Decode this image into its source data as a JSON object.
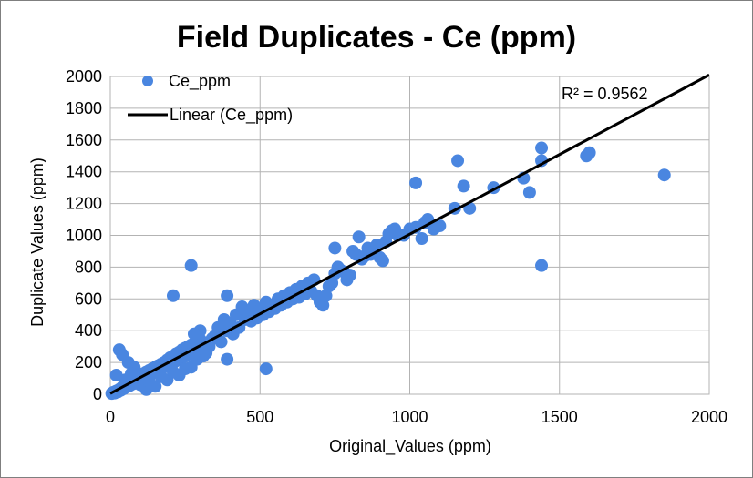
{
  "chart_data": {
    "type": "scatter",
    "title": "Field Duplicates  - Ce (ppm)",
    "xlabel": "Original_Values (ppm)",
    "ylabel": "Duplicate Values (ppm)",
    "xlim": [
      0,
      2000
    ],
    "ylim": [
      0,
      2000
    ],
    "xticks": [
      "0",
      "500",
      "1000",
      "1500",
      "2000"
    ],
    "yticks": [
      "0",
      "200",
      "400",
      "600",
      "800",
      "1000",
      "1200",
      "1400",
      "1600",
      "1800",
      "2000"
    ],
    "grid": true,
    "legend_position": "top-left",
    "annotation": "R² = 0.9562",
    "series": [
      {
        "name": "Ce_ppm",
        "marker": "circle",
        "color": "#4a86e0",
        "points": [
          [
            5,
            5
          ],
          [
            10,
            12
          ],
          [
            15,
            8
          ],
          [
            20,
            20
          ],
          [
            25,
            15
          ],
          [
            30,
            30
          ],
          [
            35,
            25
          ],
          [
            40,
            45
          ],
          [
            45,
            35
          ],
          [
            50,
            60
          ],
          [
            55,
            50
          ],
          [
            60,
            70
          ],
          [
            65,
            55
          ],
          [
            70,
            80
          ],
          [
            75,
            65
          ],
          [
            80,
            95
          ],
          [
            85,
            75
          ],
          [
            90,
            100
          ],
          [
            95,
            85
          ],
          [
            100,
            110
          ],
          [
            105,
            95
          ],
          [
            110,
            130
          ],
          [
            115,
            105
          ],
          [
            120,
            140
          ],
          [
            125,
            115
          ],
          [
            130,
            150
          ],
          [
            135,
            125
          ],
          [
            140,
            160
          ],
          [
            145,
            135
          ],
          [
            150,
            170
          ],
          [
            155,
            145
          ],
          [
            160,
            180
          ],
          [
            165,
            155
          ],
          [
            170,
            190
          ],
          [
            175,
            165
          ],
          [
            180,
            200
          ],
          [
            185,
            175
          ],
          [
            190,
            215
          ],
          [
            195,
            185
          ],
          [
            200,
            230
          ],
          [
            205,
            195
          ],
          [
            210,
            240
          ],
          [
            215,
            205
          ],
          [
            220,
            255
          ],
          [
            225,
            215
          ],
          [
            230,
            265
          ],
          [
            235,
            225
          ],
          [
            240,
            280
          ],
          [
            245,
            235
          ],
          [
            250,
            290
          ],
          [
            255,
            245
          ],
          [
            260,
            300
          ],
          [
            265,
            255
          ],
          [
            270,
            310
          ],
          [
            275,
            265
          ],
          [
            280,
            320
          ],
          [
            285,
            275
          ],
          [
            290,
            330
          ],
          [
            295,
            285
          ],
          [
            300,
            345
          ],
          [
            30,
            280
          ],
          [
            40,
            250
          ],
          [
            60,
            200
          ],
          [
            80,
            170
          ],
          [
            20,
            120
          ],
          [
            50,
            90
          ],
          [
            70,
            130
          ],
          [
            100,
            60
          ],
          [
            120,
            30
          ],
          [
            130,
            80
          ],
          [
            150,
            50
          ],
          [
            170,
            110
          ],
          [
            190,
            90
          ],
          [
            210,
            140
          ],
          [
            230,
            120
          ],
          [
            250,
            160
          ],
          [
            270,
            170
          ],
          [
            290,
            220
          ],
          [
            310,
            240
          ],
          [
            320,
            260
          ],
          [
            300,
            400
          ],
          [
            280,
            380
          ],
          [
            330,
            300
          ],
          [
            340,
            350
          ],
          [
            350,
            370
          ],
          [
            360,
            420
          ],
          [
            370,
            330
          ],
          [
            380,
            470
          ],
          [
            390,
            400
          ],
          [
            400,
            450
          ],
          [
            410,
            380
          ],
          [
            420,
            500
          ],
          [
            430,
            420
          ],
          [
            440,
            550
          ],
          [
            450,
            470
          ],
          [
            460,
            520
          ],
          [
            470,
            460
          ],
          [
            480,
            560
          ],
          [
            490,
            480
          ],
          [
            500,
            530
          ],
          [
            510,
            500
          ],
          [
            520,
            580
          ],
          [
            530,
            520
          ],
          [
            540,
            560
          ],
          [
            550,
            540
          ],
          [
            560,
            600
          ],
          [
            570,
            560
          ],
          [
            580,
            620
          ],
          [
            590,
            580
          ],
          [
            600,
            640
          ],
          [
            610,
            600
          ],
          [
            620,
            660
          ],
          [
            630,
            610
          ],
          [
            640,
            680
          ],
          [
            650,
            630
          ],
          [
            660,
            700
          ],
          [
            670,
            650
          ],
          [
            680,
            720
          ],
          [
            690,
            620
          ],
          [
            700,
            580
          ],
          [
            710,
            560
          ],
          [
            720,
            620
          ],
          [
            730,
            680
          ],
          [
            740,
            700
          ],
          [
            750,
            760
          ],
          [
            760,
            800
          ],
          [
            770,
            780
          ],
          [
            780,
            770
          ],
          [
            790,
            720
          ],
          [
            800,
            750
          ],
          [
            810,
            900
          ],
          [
            820,
            880
          ],
          [
            830,
            990
          ],
          [
            840,
            850
          ],
          [
            850,
            870
          ],
          [
            860,
            920
          ],
          [
            870,
            880
          ],
          [
            880,
            900
          ],
          [
            890,
            940
          ],
          [
            900,
            860
          ],
          [
            910,
            840
          ],
          [
            920,
            960
          ],
          [
            930,
            1010
          ],
          [
            940,
            1030
          ],
          [
            950,
            1040
          ],
          [
            960,
            1000
          ],
          [
            980,
            1000
          ],
          [
            1000,
            1040
          ],
          [
            1020,
            1050
          ],
          [
            1040,
            980
          ],
          [
            1060,
            1100
          ],
          [
            1080,
            1040
          ],
          [
            1100,
            1060
          ],
          [
            1150,
            1170
          ],
          [
            1180,
            1310
          ],
          [
            1200,
            1170
          ],
          [
            1280,
            1300
          ],
          [
            1380,
            1360
          ],
          [
            1400,
            1270
          ],
          [
            1440,
            1470
          ],
          [
            1440,
            1550
          ],
          [
            1160,
            1470
          ],
          [
            1020,
            1330
          ],
          [
            1590,
            1500
          ],
          [
            1600,
            1520
          ],
          [
            1850,
            1380
          ],
          [
            1440,
            810
          ],
          [
            270,
            810
          ],
          [
            210,
            620
          ],
          [
            520,
            160
          ],
          [
            390,
            620
          ],
          [
            390,
            220
          ],
          [
            750,
            920
          ],
          [
            940,
            1020
          ],
          [
            1050,
            1080
          ]
        ]
      },
      {
        "name": "Linear (Ce_ppm)",
        "type": "line",
        "color": "#000000",
        "points": [
          [
            0,
            5
          ],
          [
            2000,
            2010
          ]
        ]
      }
    ]
  }
}
